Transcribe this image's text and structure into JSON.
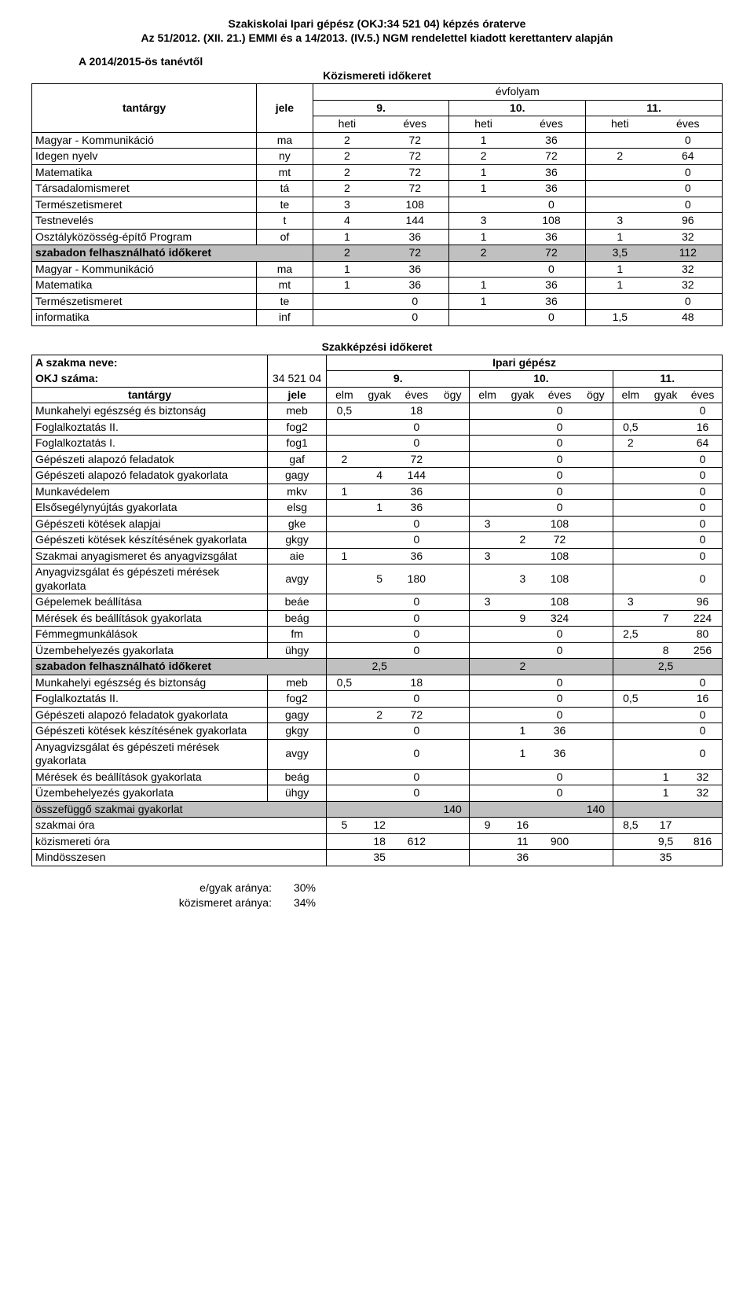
{
  "titles": {
    "t1": "Szakiskolai Ipari gépész (OKJ:34 521 04) képzés óraterve",
    "t2": "Az 51/2012. (XII. 21.) EMMI és a 14/2013. (IV.5.) NGM rendelettel kiadott kerettanterv alapján",
    "sub": "A 2014/2015-ös tanévtől",
    "sec1": "Közismereti időkeret",
    "evfolyam": "évfolyam",
    "sec2": "Szakképzési időkeret"
  },
  "hdr1": {
    "tantargy": "tantárgy",
    "jele": "jele",
    "g9": "9.",
    "g10": "10.",
    "g11": "11.",
    "heti": "heti",
    "eves": "éves"
  },
  "t1rows": [
    {
      "name": "Magyar - Kommunikáció",
      "jele": "ma",
      "c": [
        "2",
        "72",
        "1",
        "36",
        "",
        "0"
      ]
    },
    {
      "name": "Idegen nyelv",
      "jele": "ny",
      "c": [
        "2",
        "72",
        "2",
        "72",
        "2",
        "64"
      ]
    },
    {
      "name": "Matematika",
      "jele": "mt",
      "c": [
        "2",
        "72",
        "1",
        "36",
        "",
        "0"
      ]
    },
    {
      "name": "Társadalomismeret",
      "jele": "tá",
      "c": [
        "2",
        "72",
        "1",
        "36",
        "",
        "0"
      ]
    },
    {
      "name": "Természetismeret",
      "jele": "te",
      "c": [
        "3",
        "108",
        "",
        "0",
        "",
        "0"
      ]
    },
    {
      "name": "Testnevelés",
      "jele": "t",
      "c": [
        "4",
        "144",
        "3",
        "108",
        "3",
        "96"
      ]
    },
    {
      "name": "Osztályközösség-építő Program",
      "jele": "of",
      "c": [
        "1",
        "36",
        "1",
        "36",
        "1",
        "32"
      ]
    }
  ],
  "t1free": {
    "name": "szabadon felhasználható időkeret",
    "c": [
      "2",
      "72",
      "2",
      "72",
      "3,5",
      "112"
    ]
  },
  "t1rows2": [
    {
      "name": "Magyar - Kommunikáció",
      "jele": "ma",
      "c": [
        "1",
        "36",
        "",
        "0",
        "1",
        "32"
      ]
    },
    {
      "name": "Matematika",
      "jele": "mt",
      "c": [
        "1",
        "36",
        "1",
        "36",
        "1",
        "32"
      ]
    },
    {
      "name": "Természetismeret",
      "jele": "te",
      "c": [
        "",
        "0",
        "1",
        "36",
        "",
        "0"
      ]
    },
    {
      "name": "informatika",
      "jele": "inf",
      "c": [
        "",
        "0",
        "",
        "0",
        "1,5",
        "48"
      ]
    }
  ],
  "t2meta": {
    "nameLabel": "A szakma neve:",
    "nameVal": "Ipari gépész",
    "okjLabel": "OKJ száma:",
    "okjVal": "34 521 04",
    "g9": "9.",
    "g10": "10.",
    "g11": "11.",
    "tantargy": "tantárgy",
    "jele": "jele",
    "elm": "elm",
    "gyak": "gyak",
    "eves": "éves",
    "ogy": "ögy"
  },
  "t2rows": [
    {
      "name": "Munkahelyi egészség és biztonság",
      "jele": "meb",
      "c": [
        "0,5",
        "",
        "18",
        "",
        "",
        "",
        "0",
        "",
        "",
        "",
        "0"
      ],
      "wrap": true
    },
    {
      "name": "Foglalkoztatás II.",
      "jele": "fog2",
      "c": [
        "",
        "",
        "0",
        "",
        "",
        "",
        "0",
        "",
        "0,5",
        "",
        "16"
      ]
    },
    {
      "name": "Foglalkoztatás I.",
      "jele": "fog1",
      "c": [
        "",
        "",
        "0",
        "",
        "",
        "",
        "0",
        "",
        "2",
        "",
        "64"
      ]
    },
    {
      "name": "Gépészeti alapozó feladatok",
      "jele": "gaf",
      "c": [
        "2",
        "",
        "72",
        "",
        "",
        "",
        "0",
        "",
        "",
        "",
        "0"
      ]
    },
    {
      "name": "Gépészeti alapozó feladatok gyakorlata",
      "jele": "gagy",
      "c": [
        "",
        "4",
        "144",
        "",
        "",
        "",
        "0",
        "",
        "",
        "",
        "0"
      ],
      "wrap": true
    },
    {
      "name": "Munkavédelem",
      "jele": "mkv",
      "c": [
        "1",
        "",
        "36",
        "",
        "",
        "",
        "0",
        "",
        "",
        "",
        "0"
      ]
    },
    {
      "name": "Elsősegélynyújtás gyakorlata",
      "jele": "elsg",
      "c": [
        "",
        "1",
        "36",
        "",
        "",
        "",
        "0",
        "",
        "",
        "",
        "0"
      ]
    },
    {
      "name": "Gépészeti kötések alapjai",
      "jele": "gke",
      "c": [
        "",
        "",
        "0",
        "",
        "3",
        "",
        "108",
        "",
        "",
        "",
        "0"
      ]
    },
    {
      "name": "Gépészeti kötések készítésének gyakorlata",
      "jele": "gkgy",
      "c": [
        "",
        "",
        "0",
        "",
        "",
        "2",
        "72",
        "",
        "",
        "",
        "0"
      ],
      "wrap": true
    },
    {
      "name": "Szakmai anyagismeret és anyagvizsgálat",
      "jele": "aie",
      "c": [
        "1",
        "",
        "36",
        "",
        "3",
        "",
        "108",
        "",
        "",
        "",
        "0"
      ],
      "wrap": true
    },
    {
      "name": "Anyagvizsgálat és gépészeti mérések gyakorlata",
      "jele": "avgy",
      "c": [
        "",
        "5",
        "180",
        "",
        "",
        "3",
        "108",
        "",
        "",
        "",
        "0"
      ],
      "wrap": true
    },
    {
      "name": "Gépelemek beállítása",
      "jele": "beáe",
      "c": [
        "",
        "",
        "0",
        "",
        "3",
        "",
        "108",
        "",
        "3",
        "",
        "96"
      ]
    },
    {
      "name": "Mérések és beállítások gyakorlata",
      "jele": "beág",
      "c": [
        "",
        "",
        "0",
        "",
        "",
        "9",
        "324",
        "",
        "",
        "7",
        "224"
      ],
      "wrap": true
    },
    {
      "name": "Fémmegmunkálások",
      "jele": "fm",
      "c": [
        "",
        "",
        "0",
        "",
        "",
        "",
        "0",
        "",
        "2,5",
        "",
        "80"
      ]
    },
    {
      "name": "Üzembehelyezés gyakorlata",
      "jele": "ühgy",
      "c": [
        "",
        "",
        "0",
        "",
        "",
        "",
        "0",
        "",
        "",
        "8",
        "256"
      ]
    }
  ],
  "t2free": {
    "name": "szabadon felhasználható időkeret",
    "c": [
      "",
      "2,5",
      "",
      "",
      "",
      "2",
      "",
      "",
      "",
      "2,5",
      ""
    ]
  },
  "t2rows2": [
    {
      "name": "Munkahelyi egészség és biztonság",
      "jele": "meb",
      "c": [
        "0,5",
        "",
        "18",
        "",
        "",
        "",
        "0",
        "",
        "",
        "",
        "0"
      ],
      "wrap": true
    },
    {
      "name": "Foglalkoztatás II.",
      "jele": "fog2",
      "c": [
        "",
        "",
        "0",
        "",
        "",
        "",
        "0",
        "",
        "0,5",
        "",
        "16"
      ]
    },
    {
      "name": "Gépészeti alapozó feladatok gyakorlata",
      "jele": "gagy",
      "c": [
        "",
        "2",
        "72",
        "",
        "",
        "",
        "0",
        "",
        "",
        "",
        "0"
      ],
      "wrap": true
    },
    {
      "name": "Gépészeti kötések készítésének gyakorlata",
      "jele": "gkgy",
      "c": [
        "",
        "",
        "0",
        "",
        "",
        "1",
        "36",
        "",
        "",
        "",
        "0"
      ],
      "wrap": true
    },
    {
      "name": "Anyagvizsgálat és gépészeti mérések gyakorlata",
      "jele": "avgy",
      "c": [
        "",
        "",
        "0",
        "",
        "",
        "1",
        "36",
        "",
        "",
        "",
        "0"
      ],
      "wrap": true
    },
    {
      "name": "Mérések és beállítások gyakorlata",
      "jele": "beág",
      "c": [
        "",
        "",
        "0",
        "",
        "",
        "",
        "0",
        "",
        "",
        "1",
        "32"
      ],
      "wrap": true
    },
    {
      "name": "Üzembehelyezés gyakorlata",
      "jele": "ühgy",
      "c": [
        "",
        "",
        "0",
        "",
        "",
        "",
        "0",
        "",
        "",
        "1",
        "32"
      ]
    }
  ],
  "t2sum": [
    {
      "name": "összefüggő szakmai gyakorlat",
      "c": [
        "",
        "",
        "",
        "140",
        "",
        "",
        "",
        "140",
        "",
        "",
        ""
      ],
      "grey": true
    },
    {
      "name": "szakmai óra",
      "c": [
        "5",
        "12",
        "",
        "",
        "9",
        "16",
        "",
        "",
        "8,5",
        "17",
        ""
      ]
    },
    {
      "name": "közismereti óra",
      "c": [
        "",
        "18",
        "612",
        "",
        "",
        "11",
        "900",
        "",
        "",
        "9,5",
        "816"
      ]
    },
    {
      "name": "Mindösszesen",
      "c": [
        "",
        "35",
        "",
        "",
        "",
        "36",
        "",
        "",
        "",
        "35",
        ""
      ]
    }
  ],
  "footer": {
    "r1a": "e/gyak aránya:",
    "r1b": "30%",
    "r2a": "közismeret aránya:",
    "r2b": "34%"
  },
  "style": {
    "greyColor": "#c0c0c0",
    "fontFamily": "Arial",
    "fontSizePt": 11
  }
}
